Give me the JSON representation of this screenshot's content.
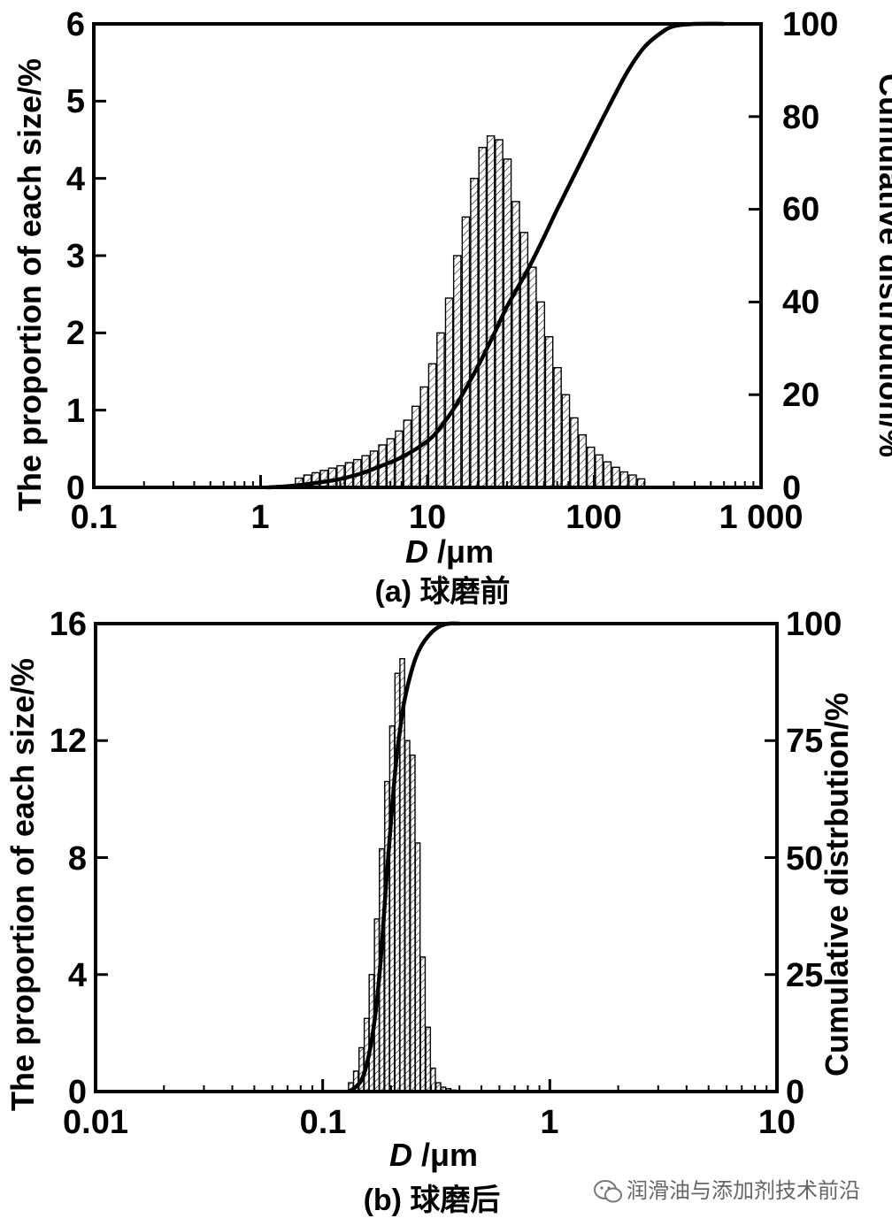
{
  "chart_data": [
    {
      "type": "bar",
      "title": "",
      "caption": "(a) 球磨前",
      "xlabel_italic": "D",
      "xlabel_unit": " /μm",
      "ylabel": "The proportion of each size/%",
      "y2label": "Cumulative distrbution/%",
      "xscale": "log",
      "xlim": [
        0.1,
        1000
      ],
      "ylim": [
        0,
        6
      ],
      "y2lim": [
        0,
        100
      ],
      "xticks": [
        0.1,
        1,
        10,
        100,
        1000
      ],
      "xtick_labels": [
        "0.1",
        "1",
        "10",
        "100",
        "1 000"
      ],
      "yticks": [
        0,
        1,
        2,
        3,
        4,
        5,
        6
      ],
      "ytick_labels": [
        "0",
        "1",
        "2",
        "3",
        "4",
        "5",
        "6"
      ],
      "y2ticks": [
        0,
        20,
        40,
        60,
        80,
        100
      ],
      "y2tick_labels": [
        "0",
        "20",
        "40",
        "60",
        "80",
        "100"
      ],
      "bar_series": {
        "name": "The proportion of each size",
        "x": [
          1.7,
          1.91,
          2.14,
          2.4,
          2.69,
          3.02,
          3.39,
          3.8,
          4.26,
          4.78,
          5.37,
          6.02,
          6.76,
          7.58,
          8.51,
          9.55,
          10.7,
          12.0,
          13.5,
          15.1,
          17.0,
          19.1,
          21.4,
          24.0,
          26.9,
          30.2,
          33.9,
          38.0,
          42.7,
          47.9,
          53.7,
          60.3,
          67.6,
          75.9,
          85.1,
          95.5,
          107,
          120,
          135,
          151,
          170,
          191
        ],
        "values": [
          0.12,
          0.16,
          0.19,
          0.22,
          0.25,
          0.28,
          0.32,
          0.36,
          0.41,
          0.47,
          0.55,
          0.63,
          0.73,
          0.87,
          1.05,
          1.3,
          1.6,
          2.0,
          2.45,
          3.0,
          3.5,
          4.0,
          4.4,
          4.55,
          4.5,
          4.25,
          3.7,
          3.3,
          2.85,
          2.4,
          1.95,
          1.55,
          1.2,
          0.9,
          0.68,
          0.52,
          0.42,
          0.33,
          0.26,
          0.2,
          0.16,
          0.11
        ]
      },
      "line_series": {
        "name": "Cumulative distribution",
        "x": [
          1.1,
          1.5,
          2,
          3,
          4,
          5,
          7,
          10,
          12,
          15,
          20,
          25,
          30,
          40,
          50,
          60,
          80,
          100,
          130,
          160,
          200,
          250,
          300,
          400,
          600
        ],
        "values": [
          0,
          0.3,
          0.8,
          1.8,
          3,
          4.3,
          6.5,
          10,
          13,
          18,
          26,
          33,
          39,
          47,
          54,
          60,
          69,
          76,
          84,
          90,
          95,
          98,
          99.5,
          100,
          100
        ]
      }
    },
    {
      "type": "bar",
      "title": "",
      "caption": "(b)  球磨后",
      "xlabel_italic": "D",
      "xlabel_unit": " /μm",
      "ylabel": "The proportion of each size/%",
      "y2label": "Cumulative distrbution/%",
      "xscale": "log",
      "xlim": [
        0.01,
        10
      ],
      "ylim": [
        0,
        16
      ],
      "y2lim": [
        0,
        100
      ],
      "xticks": [
        0.01,
        0.1,
        1,
        10
      ],
      "xtick_labels": [
        "0.01",
        "0.1",
        "1",
        "10"
      ],
      "yticks": [
        0,
        4,
        8,
        12,
        16
      ],
      "ytick_labels": [
        "0",
        "4",
        "8",
        "12",
        "16"
      ],
      "y2ticks": [
        0,
        25,
        50,
        75,
        100
      ],
      "y2tick_labels": [
        "0",
        "25",
        "50",
        "75",
        "100"
      ],
      "bar_series": {
        "name": "The proportion of each size",
        "x": [
          0.133,
          0.14,
          0.148,
          0.156,
          0.164,
          0.173,
          0.182,
          0.192,
          0.202,
          0.213,
          0.224,
          0.236,
          0.249,
          0.262,
          0.276,
          0.291,
          0.306,
          0.323,
          0.34,
          0.358,
          0.377,
          0.397
        ],
        "values": [
          0.3,
          0.7,
          1.5,
          2.5,
          4.0,
          5.9,
          8.3,
          10.6,
          12.5,
          14.3,
          14.8,
          12.0,
          11.5,
          8.5,
          4.6,
          2.2,
          0.8,
          0.3,
          0.15,
          0.1,
          0.05,
          0.03
        ]
      },
      "line_series": {
        "name": "Cumulative distribution",
        "x": [
          0.13,
          0.14,
          0.15,
          0.16,
          0.17,
          0.18,
          0.19,
          0.2,
          0.21,
          0.22,
          0.23,
          0.25,
          0.27,
          0.3,
          0.33,
          0.36,
          0.4
        ],
        "values": [
          0,
          1,
          3,
          8,
          16,
          28,
          44,
          58,
          70,
          78,
          84,
          91,
          95,
          98,
          99.5,
          100,
          100
        ]
      }
    }
  ],
  "watermark": "润滑油与添加剂技术前沿"
}
